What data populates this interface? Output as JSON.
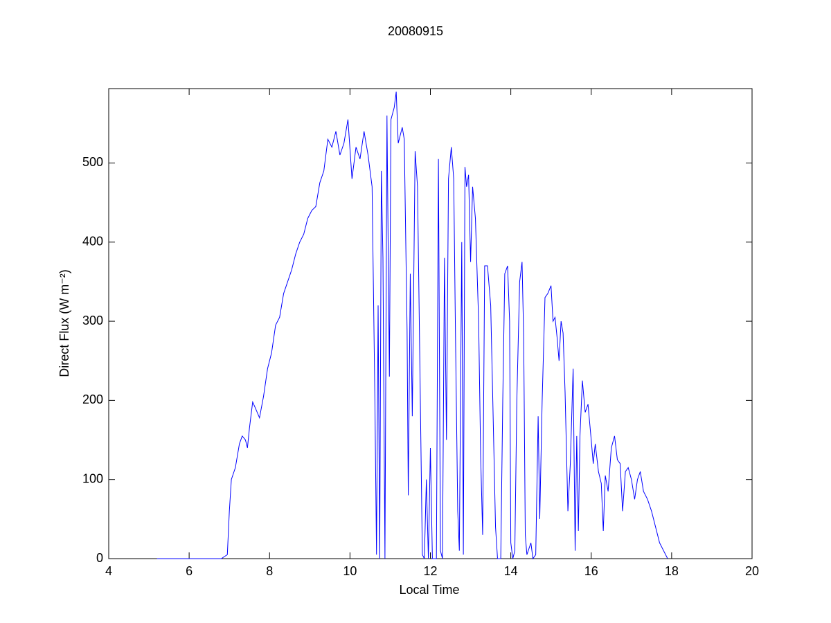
{
  "chart_data": {
    "type": "line",
    "title": "20080915",
    "xlabel": "Local Time",
    "ylabel": "Direct Flux (W m⁻²)",
    "xlim": [
      4,
      20
    ],
    "xticks": [
      4,
      6,
      8,
      10,
      12,
      14,
      16,
      18,
      20
    ],
    "ylim": [
      0,
      594
    ],
    "yticks": [
      0,
      100,
      200,
      300,
      400,
      500
    ],
    "series": [
      {
        "color": "#0000ff",
        "x": [
          5.2,
          6.0,
          6.8,
          6.95,
          7.0,
          7.05,
          7.15,
          7.25,
          7.32,
          7.4,
          7.45,
          7.5,
          7.58,
          7.65,
          7.75,
          7.85,
          7.95,
          8.05,
          8.15,
          8.25,
          8.35,
          8.45,
          8.55,
          8.65,
          8.75,
          8.85,
          8.95,
          9.05,
          9.15,
          9.25,
          9.35,
          9.45,
          9.55,
          9.65,
          9.75,
          9.85,
          9.95,
          10.05,
          10.15,
          10.25,
          10.35,
          10.45,
          10.55,
          10.62,
          10.66,
          10.7,
          10.74,
          10.78,
          10.82,
          10.87,
          10.92,
          10.98,
          11.02,
          11.1,
          11.15,
          11.2,
          11.3,
          11.35,
          11.42,
          11.45,
          11.5,
          11.55,
          11.62,
          11.68,
          11.75,
          11.8,
          11.85,
          11.9,
          11.95,
          12.0,
          12.05,
          12.15,
          12.2,
          12.25,
          12.3,
          12.35,
          12.4,
          12.45,
          12.52,
          12.58,
          12.62,
          12.68,
          12.72,
          12.78,
          12.82,
          12.86,
          12.9,
          12.95,
          13.0,
          13.05,
          13.12,
          13.2,
          13.25,
          13.3,
          13.35,
          13.42,
          13.5,
          13.55,
          13.62,
          13.67,
          13.75,
          13.8,
          13.85,
          13.92,
          13.97,
          14.0,
          14.05,
          14.1,
          14.15,
          14.22,
          14.28,
          14.32,
          14.36,
          14.4,
          14.5,
          14.55,
          14.62,
          14.68,
          14.72,
          14.78,
          14.85,
          14.92,
          15.0,
          15.05,
          15.1,
          15.15,
          15.2,
          15.25,
          15.3,
          15.35,
          15.42,
          15.48,
          15.55,
          15.6,
          15.64,
          15.68,
          15.72,
          15.78,
          15.85,
          15.92,
          16.0,
          16.05,
          16.1,
          16.18,
          16.25,
          16.3,
          16.35,
          16.42,
          16.5,
          16.58,
          16.65,
          16.72,
          16.78,
          16.85,
          16.92,
          17.0,
          17.08,
          17.15,
          17.22,
          17.3,
          17.4,
          17.5,
          17.6,
          17.7,
          17.8,
          17.9
        ],
        "values": [
          0,
          0,
          0,
          5,
          60,
          100,
          115,
          145,
          155,
          150,
          140,
          165,
          198,
          190,
          178,
          205,
          240,
          260,
          295,
          305,
          335,
          350,
          365,
          385,
          400,
          410,
          430,
          440,
          445,
          475,
          490,
          530,
          520,
          540,
          510,
          525,
          555,
          480,
          520,
          505,
          540,
          510,
          470,
          200,
          5,
          320,
          0,
          490,
          380,
          0,
          560,
          230,
          555,
          570,
          590,
          525,
          545,
          530,
          290,
          80,
          360,
          180,
          515,
          470,
          200,
          5,
          0,
          100,
          0,
          140,
          0,
          0,
          505,
          10,
          0,
          380,
          150,
          480,
          520,
          480,
          300,
          60,
          10,
          400,
          5,
          495,
          470,
          485,
          375,
          470,
          430,
          300,
          130,
          30,
          370,
          370,
          320,
          205,
          40,
          0,
          0,
          200,
          360,
          370,
          300,
          20,
          0,
          10,
          200,
          350,
          375,
          280,
          30,
          5,
          20,
          0,
          5,
          180,
          50,
          200,
          330,
          335,
          345,
          300,
          305,
          280,
          250,
          300,
          285,
          210,
          60,
          120,
          240,
          10,
          155,
          35,
          155,
          225,
          185,
          195,
          150,
          120,
          145,
          110,
          95,
          35,
          105,
          85,
          140,
          155,
          125,
          120,
          60,
          110,
          115,
          100,
          75,
          100,
          110,
          85,
          75,
          60,
          40,
          20,
          10,
          0
        ]
      }
    ]
  }
}
